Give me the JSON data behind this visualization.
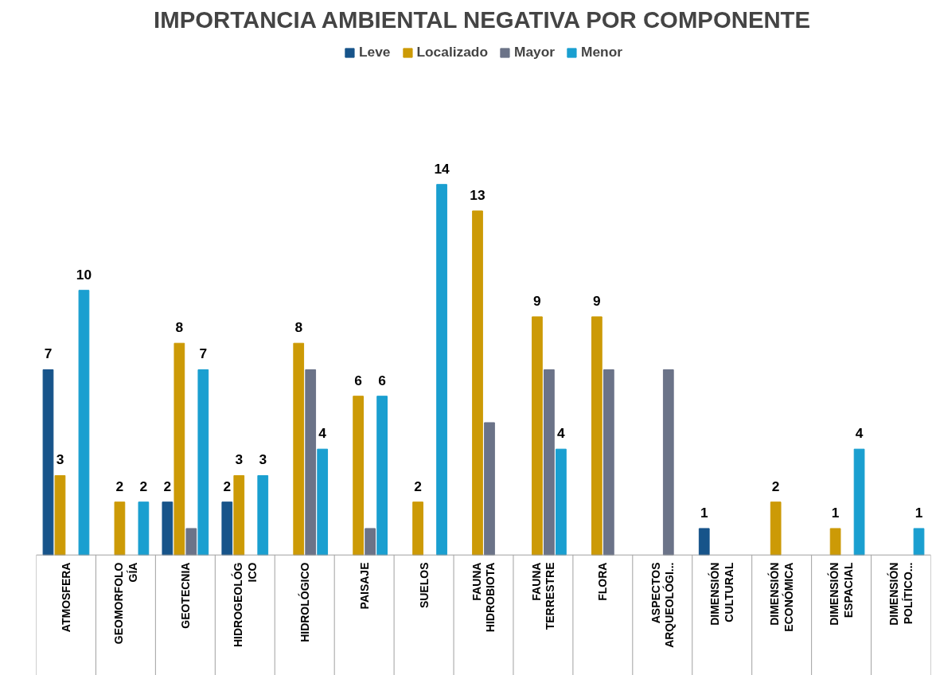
{
  "chart_data": {
    "type": "bar",
    "title": "IMPORTANCIA AMBIENTAL NEGATIVA POR COMPONENTE",
    "categories": [
      "ATMOSFERA",
      "GEOMORFOLO\nGÍA",
      "GEOTECNIA",
      "HIDROGEOLÓG\nICO",
      "HIDROLÓGICO",
      "PAISAJE",
      "SUELOS",
      "FAUNA\nHIDROBIOTA",
      "FAUNA\nTERRESTRE",
      "FLORA",
      "ASPECTOS\nARQUEOLÓGI...",
      "DIMENSIÓN\nCULTURAL",
      "DIMENSIÓN\nECONÓMICA",
      "DIMENSIÓN\nESPACIAL",
      "DIMENSIÓN\nPOLÍTICO..."
    ],
    "series": [
      {
        "name": "Leve",
        "color": "#17548a",
        "values": [
          7,
          null,
          2,
          2,
          null,
          null,
          null,
          null,
          null,
          null,
          null,
          1,
          null,
          null,
          null
        ],
        "value_labels": [
          "7",
          null,
          "2",
          "2",
          null,
          null,
          null,
          null,
          null,
          null,
          null,
          "1",
          null,
          null,
          null
        ]
      },
      {
        "name": "Localizado",
        "color": "#cc9a06",
        "values": [
          3,
          2,
          8,
          3,
          8,
          6,
          2,
          13,
          9,
          9,
          null,
          null,
          2,
          1,
          null
        ],
        "value_labels": [
          "3",
          "2",
          "8",
          "3",
          "8",
          "6",
          "2",
          "13",
          "9",
          "9",
          null,
          null,
          "2",
          "1",
          null
        ]
      },
      {
        "name": "Mayor",
        "color": "#6b7388",
        "values": [
          null,
          null,
          1,
          null,
          7,
          1,
          null,
          5,
          7,
          7,
          7,
          null,
          null,
          null,
          null
        ]
      },
      {
        "name": "Menor",
        "color": "#1a9fd0",
        "values": [
          10,
          2,
          7,
          3,
          4,
          6,
          14,
          null,
          4,
          null,
          null,
          null,
          null,
          4,
          1
        ],
        "value_labels": [
          "10",
          "2",
          "7",
          "3",
          "4",
          "6",
          "14",
          null,
          "4",
          null,
          null,
          null,
          null,
          "4",
          "1"
        ]
      }
    ],
    "legend": "top",
    "grid": false
  }
}
